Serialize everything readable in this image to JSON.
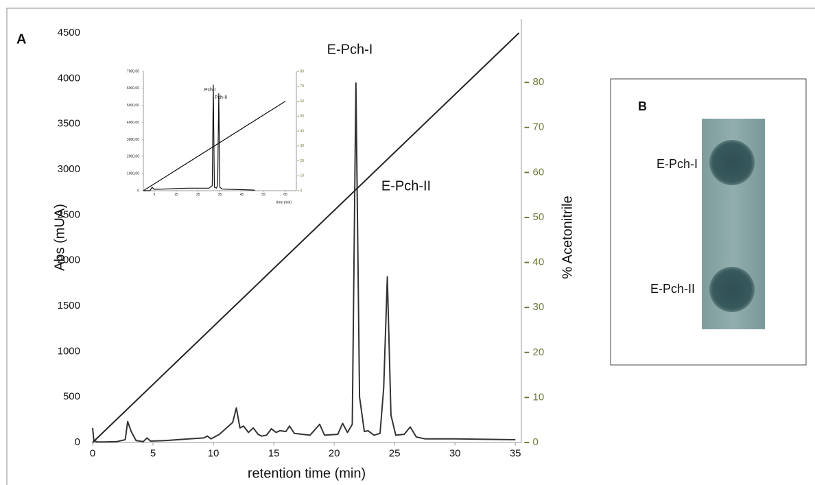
{
  "panel_labels": [
    "A",
    "B"
  ],
  "chart_data": [
    {
      "type": "line",
      "xlabel": "retention time (min)",
      "ylabel": "Abs (mUA)",
      "y2label": "% Acetonitrile",
      "xlim": [
        0,
        35.5
      ],
      "ylim": [
        0,
        4500
      ],
      "y2lim": [
        0,
        91
      ],
      "xticks": [
        0,
        5,
        10,
        15,
        20,
        25,
        30,
        35
      ],
      "yticks": [
        0,
        500,
        1000,
        1500,
        2000,
        2500,
        3000,
        3500,
        4000,
        4500
      ],
      "y2ticks": [
        0,
        10,
        20,
        30,
        40,
        50,
        60,
        70,
        80
      ],
      "y2_tick_color": "#6b7a3a",
      "annotations": [
        "E-Pch-I",
        "E-Pch-II"
      ],
      "series": [
        {
          "color": "#333333",
          "x": [
            0,
            0.1,
            0.4,
            1,
            2,
            2.7,
            2.9,
            3.2,
            3.6,
            4.2,
            4.5,
            4.8,
            6,
            8,
            9.2,
            9.5,
            9.8,
            10.5,
            11,
            11.6,
            11.9,
            12.2,
            12.5,
            12.9,
            13.3,
            13.7,
            14,
            14.4,
            14.8,
            15.2,
            15.5,
            16,
            16.3,
            16.7,
            18,
            18.8,
            19.2,
            20.3,
            20.7,
            21.1,
            21.5,
            21.8,
            22.1,
            22.5,
            22.8,
            23.3,
            23.8,
            24.1,
            24.4,
            24.7,
            25.1,
            25.8,
            26.3,
            26.8,
            27.5,
            30,
            35
          ],
          "values": [
            160,
            20,
            5,
            5,
            10,
            30,
            230,
            120,
            20,
            10,
            50,
            15,
            20,
            40,
            50,
            70,
            40,
            90,
            150,
            220,
            380,
            160,
            180,
            110,
            160,
            90,
            70,
            80,
            150,
            110,
            130,
            120,
            180,
            100,
            80,
            200,
            80,
            90,
            210,
            110,
            200,
            3950,
            500,
            120,
            130,
            80,
            100,
            600,
            1820,
            300,
            80,
            90,
            170,
            60,
            40,
            40,
            30
          ]
        },
        {
          "color": "#222222",
          "axis": "y2",
          "x": [
            0,
            35.3
          ],
          "values": [
            0,
            91
          ]
        }
      ]
    },
    {
      "type": "line",
      "xlabel": "time (min)",
      "xlim": [
        0,
        70
      ],
      "ylim": [
        0,
        7000
      ],
      "y2lim": [
        0,
        80
      ],
      "xticks": [
        5,
        15,
        25,
        35,
        45,
        55,
        65
      ],
      "yticks": [
        0,
        {
          "value": 1000,
          "label": "1000,00"
        },
        {
          "value": 2000,
          "label": "2000,00"
        },
        {
          "value": 3000,
          "label": "3000,00"
        },
        {
          "value": 4000,
          "label": "4000,00"
        },
        {
          "value": 5000,
          "label": "5000,00"
        },
        {
          "value": 6000,
          "label": "6000,00"
        },
        {
          "value": 7000,
          "label": "7000,00"
        }
      ],
      "y2ticks": [
        0,
        10,
        20,
        30,
        40,
        50,
        60,
        70,
        80
      ],
      "y2_tick_color": "#6b7a3a",
      "annotations": [
        "Pch-I",
        "Pch-II"
      ],
      "series": [
        {
          "color": "#111111",
          "x": [
            0,
            3,
            4,
            5,
            10,
            20,
            30,
            31.5,
            32,
            32.5,
            33.5,
            34,
            34.5,
            35,
            36,
            40,
            45,
            50,
            51
          ],
          "values": [
            0,
            0,
            200,
            80,
            100,
            150,
            150,
            300,
            6200,
            200,
            150,
            400,
            5700,
            200,
            100,
            80,
            60,
            40,
            20
          ]
        },
        {
          "color": "#111111",
          "axis": "y2",
          "x": [
            0,
            65
          ],
          "values": [
            0,
            60
          ]
        }
      ]
    }
  ],
  "panel_b": {
    "labels": [
      "E-Pch-I",
      "E-Pch-II"
    ]
  }
}
